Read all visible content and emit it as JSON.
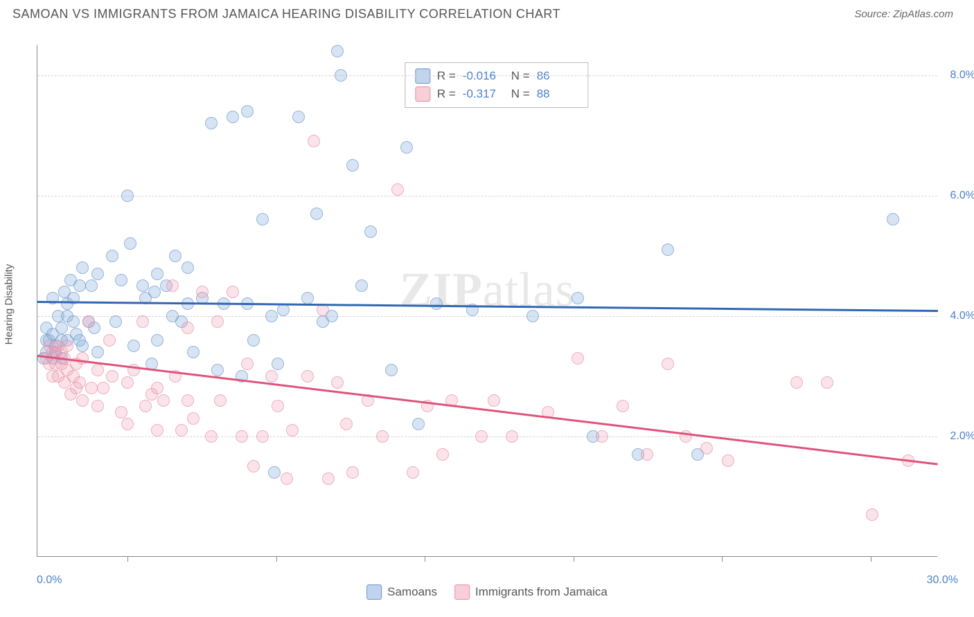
{
  "title": "SAMOAN VS IMMIGRANTS FROM JAMAICA HEARING DISABILITY CORRELATION CHART",
  "source": "Source: ZipAtlas.com",
  "y_axis_label": "Hearing Disability",
  "watermark": {
    "bold": "ZIP",
    "rest": "atlas"
  },
  "chart": {
    "type": "scatter",
    "background_color": "#ffffff",
    "grid_color": "#d5d5d5",
    "xlim": [
      0,
      30
    ],
    "ylim": [
      0,
      8.5
    ],
    "x_axis": {
      "label_min": "0.0%",
      "label_max": "30.0%",
      "tick_positions_pct": [
        10,
        26.5,
        43,
        59.5,
        76,
        92.5
      ]
    },
    "y_axis": {
      "ticks": [
        {
          "value": 2.0,
          "label": "2.0%"
        },
        {
          "value": 4.0,
          "label": "4.0%"
        },
        {
          "value": 6.0,
          "label": "6.0%"
        },
        {
          "value": 8.0,
          "label": "8.0%"
        }
      ]
    },
    "series": [
      {
        "name": "Samoans",
        "color_fill": "rgba(130,170,220,0.45)",
        "color_border": "#6a95c8",
        "trend_color": "#3166b5",
        "r_label": "R =",
        "r_value": "-0.016",
        "n_label": "N =",
        "n_value": "86",
        "trend": {
          "x1": 0,
          "y1": 4.25,
          "x2": 30,
          "y2": 4.1
        },
        "points": [
          [
            0.2,
            3.3
          ],
          [
            0.3,
            3.6
          ],
          [
            0.3,
            3.8
          ],
          [
            0.3,
            3.4
          ],
          [
            0.4,
            3.6
          ],
          [
            0.5,
            3.7
          ],
          [
            0.5,
            4.3
          ],
          [
            0.5,
            3.3
          ],
          [
            0.6,
            3.5
          ],
          [
            0.6,
            3.4
          ],
          [
            0.7,
            4.0
          ],
          [
            0.8,
            3.6
          ],
          [
            0.8,
            3.8
          ],
          [
            0.8,
            3.3
          ],
          [
            0.9,
            4.4
          ],
          [
            1.0,
            4.2
          ],
          [
            1.0,
            4.0
          ],
          [
            1.0,
            3.6
          ],
          [
            1.1,
            4.6
          ],
          [
            1.2,
            4.3
          ],
          [
            1.2,
            3.9
          ],
          [
            1.3,
            3.7
          ],
          [
            1.4,
            3.6
          ],
          [
            1.4,
            4.5
          ],
          [
            1.5,
            3.5
          ],
          [
            1.5,
            4.8
          ],
          [
            1.7,
            3.9
          ],
          [
            1.8,
            4.5
          ],
          [
            1.9,
            3.8
          ],
          [
            2.0,
            3.4
          ],
          [
            2.0,
            4.7
          ],
          [
            2.5,
            5.0
          ],
          [
            2.6,
            3.9
          ],
          [
            2.8,
            4.6
          ],
          [
            3.0,
            6.0
          ],
          [
            3.1,
            5.2
          ],
          [
            3.2,
            3.5
          ],
          [
            3.5,
            4.5
          ],
          [
            3.6,
            4.3
          ],
          [
            3.8,
            3.2
          ],
          [
            3.9,
            4.4
          ],
          [
            4.0,
            4.7
          ],
          [
            4.0,
            3.6
          ],
          [
            4.3,
            4.5
          ],
          [
            4.5,
            4.0
          ],
          [
            4.6,
            5.0
          ],
          [
            4.8,
            3.9
          ],
          [
            5.0,
            4.2
          ],
          [
            5.0,
            4.8
          ],
          [
            5.2,
            3.4
          ],
          [
            5.5,
            4.3
          ],
          [
            5.8,
            7.2
          ],
          [
            6.0,
            3.1
          ],
          [
            6.2,
            4.2
          ],
          [
            6.5,
            7.3
          ],
          [
            6.8,
            3.0
          ],
          [
            7.0,
            7.4
          ],
          [
            7.0,
            4.2
          ],
          [
            7.2,
            3.6
          ],
          [
            7.5,
            5.6
          ],
          [
            7.8,
            4.0
          ],
          [
            7.9,
            1.4
          ],
          [
            8.0,
            3.2
          ],
          [
            8.2,
            4.1
          ],
          [
            8.7,
            7.3
          ],
          [
            9.0,
            4.3
          ],
          [
            9.3,
            5.7
          ],
          [
            9.5,
            3.9
          ],
          [
            9.8,
            4.0
          ],
          [
            10.0,
            8.4
          ],
          [
            10.1,
            8.0
          ],
          [
            10.5,
            6.5
          ],
          [
            10.8,
            4.5
          ],
          [
            11.1,
            5.4
          ],
          [
            11.8,
            3.1
          ],
          [
            12.3,
            6.8
          ],
          [
            12.7,
            2.2
          ],
          [
            13.3,
            4.2
          ],
          [
            14.5,
            4.1
          ],
          [
            16.5,
            4.0
          ],
          [
            18.0,
            4.3
          ],
          [
            18.5,
            2.0
          ],
          [
            20.0,
            1.7
          ],
          [
            21.0,
            5.1
          ],
          [
            22.0,
            1.7
          ],
          [
            28.5,
            5.6
          ]
        ]
      },
      {
        "name": "Immigrants from Jamaica",
        "color_fill": "rgba(240,160,180,0.4)",
        "color_border": "#e88ba5",
        "trend_color": "#e0527a",
        "r_label": "R =",
        "r_value": "-0.317",
        "n_label": "N =",
        "n_value": "88",
        "trend": {
          "x1": 0,
          "y1": 3.35,
          "x2": 30,
          "y2": 1.55
        },
        "points": [
          [
            0.3,
            3.3
          ],
          [
            0.4,
            3.5
          ],
          [
            0.4,
            3.2
          ],
          [
            0.5,
            3.4
          ],
          [
            0.5,
            3.0
          ],
          [
            0.6,
            3.4
          ],
          [
            0.6,
            3.2
          ],
          [
            0.7,
            3.5
          ],
          [
            0.7,
            3.0
          ],
          [
            0.8,
            3.2
          ],
          [
            0.8,
            3.4
          ],
          [
            0.9,
            3.3
          ],
          [
            0.9,
            2.9
          ],
          [
            1.0,
            3.5
          ],
          [
            1.0,
            3.1
          ],
          [
            1.1,
            2.7
          ],
          [
            1.2,
            3.0
          ],
          [
            1.3,
            3.2
          ],
          [
            1.3,
            2.8
          ],
          [
            1.4,
            2.9
          ],
          [
            1.5,
            3.3
          ],
          [
            1.5,
            2.6
          ],
          [
            1.7,
            3.9
          ],
          [
            1.8,
            2.8
          ],
          [
            2.0,
            3.1
          ],
          [
            2.0,
            2.5
          ],
          [
            2.2,
            2.8
          ],
          [
            2.4,
            3.6
          ],
          [
            2.5,
            3.0
          ],
          [
            2.8,
            2.4
          ],
          [
            3.0,
            2.9
          ],
          [
            3.0,
            2.2
          ],
          [
            3.2,
            3.1
          ],
          [
            3.5,
            3.9
          ],
          [
            3.6,
            2.5
          ],
          [
            3.8,
            2.7
          ],
          [
            4.0,
            2.1
          ],
          [
            4.0,
            2.8
          ],
          [
            4.2,
            2.6
          ],
          [
            4.5,
            4.5
          ],
          [
            4.6,
            3.0
          ],
          [
            4.8,
            2.1
          ],
          [
            5.0,
            2.6
          ],
          [
            5.0,
            3.8
          ],
          [
            5.2,
            2.3
          ],
          [
            5.5,
            4.4
          ],
          [
            5.8,
            2.0
          ],
          [
            6.0,
            3.9
          ],
          [
            6.1,
            2.6
          ],
          [
            6.5,
            4.4
          ],
          [
            6.8,
            2.0
          ],
          [
            7.0,
            3.2
          ],
          [
            7.2,
            1.5
          ],
          [
            7.5,
            2.0
          ],
          [
            7.8,
            3.0
          ],
          [
            8.0,
            2.5
          ],
          [
            8.3,
            1.3
          ],
          [
            8.5,
            2.1
          ],
          [
            9.0,
            3.0
          ],
          [
            9.2,
            6.9
          ],
          [
            9.5,
            4.1
          ],
          [
            9.7,
            1.3
          ],
          [
            10.0,
            2.9
          ],
          [
            10.3,
            2.2
          ],
          [
            10.5,
            1.4
          ],
          [
            11.0,
            2.6
          ],
          [
            11.5,
            2.0
          ],
          [
            12.0,
            6.1
          ],
          [
            12.5,
            1.4
          ],
          [
            13.0,
            2.5
          ],
          [
            13.5,
            1.7
          ],
          [
            13.8,
            2.6
          ],
          [
            14.8,
            2.0
          ],
          [
            15.2,
            2.6
          ],
          [
            15.8,
            2.0
          ],
          [
            17.0,
            2.4
          ],
          [
            18.0,
            3.3
          ],
          [
            18.8,
            2.0
          ],
          [
            19.5,
            2.5
          ],
          [
            20.3,
            1.7
          ],
          [
            21.0,
            3.2
          ],
          [
            21.6,
            2.0
          ],
          [
            22.3,
            1.8
          ],
          [
            23.0,
            1.6
          ],
          [
            25.3,
            2.9
          ],
          [
            26.3,
            2.9
          ],
          [
            27.8,
            0.7
          ],
          [
            29.0,
            1.6
          ]
        ]
      }
    ]
  },
  "legend_bottom": {
    "series1": "Samoans",
    "series2": "Immigrants from Jamaica"
  }
}
